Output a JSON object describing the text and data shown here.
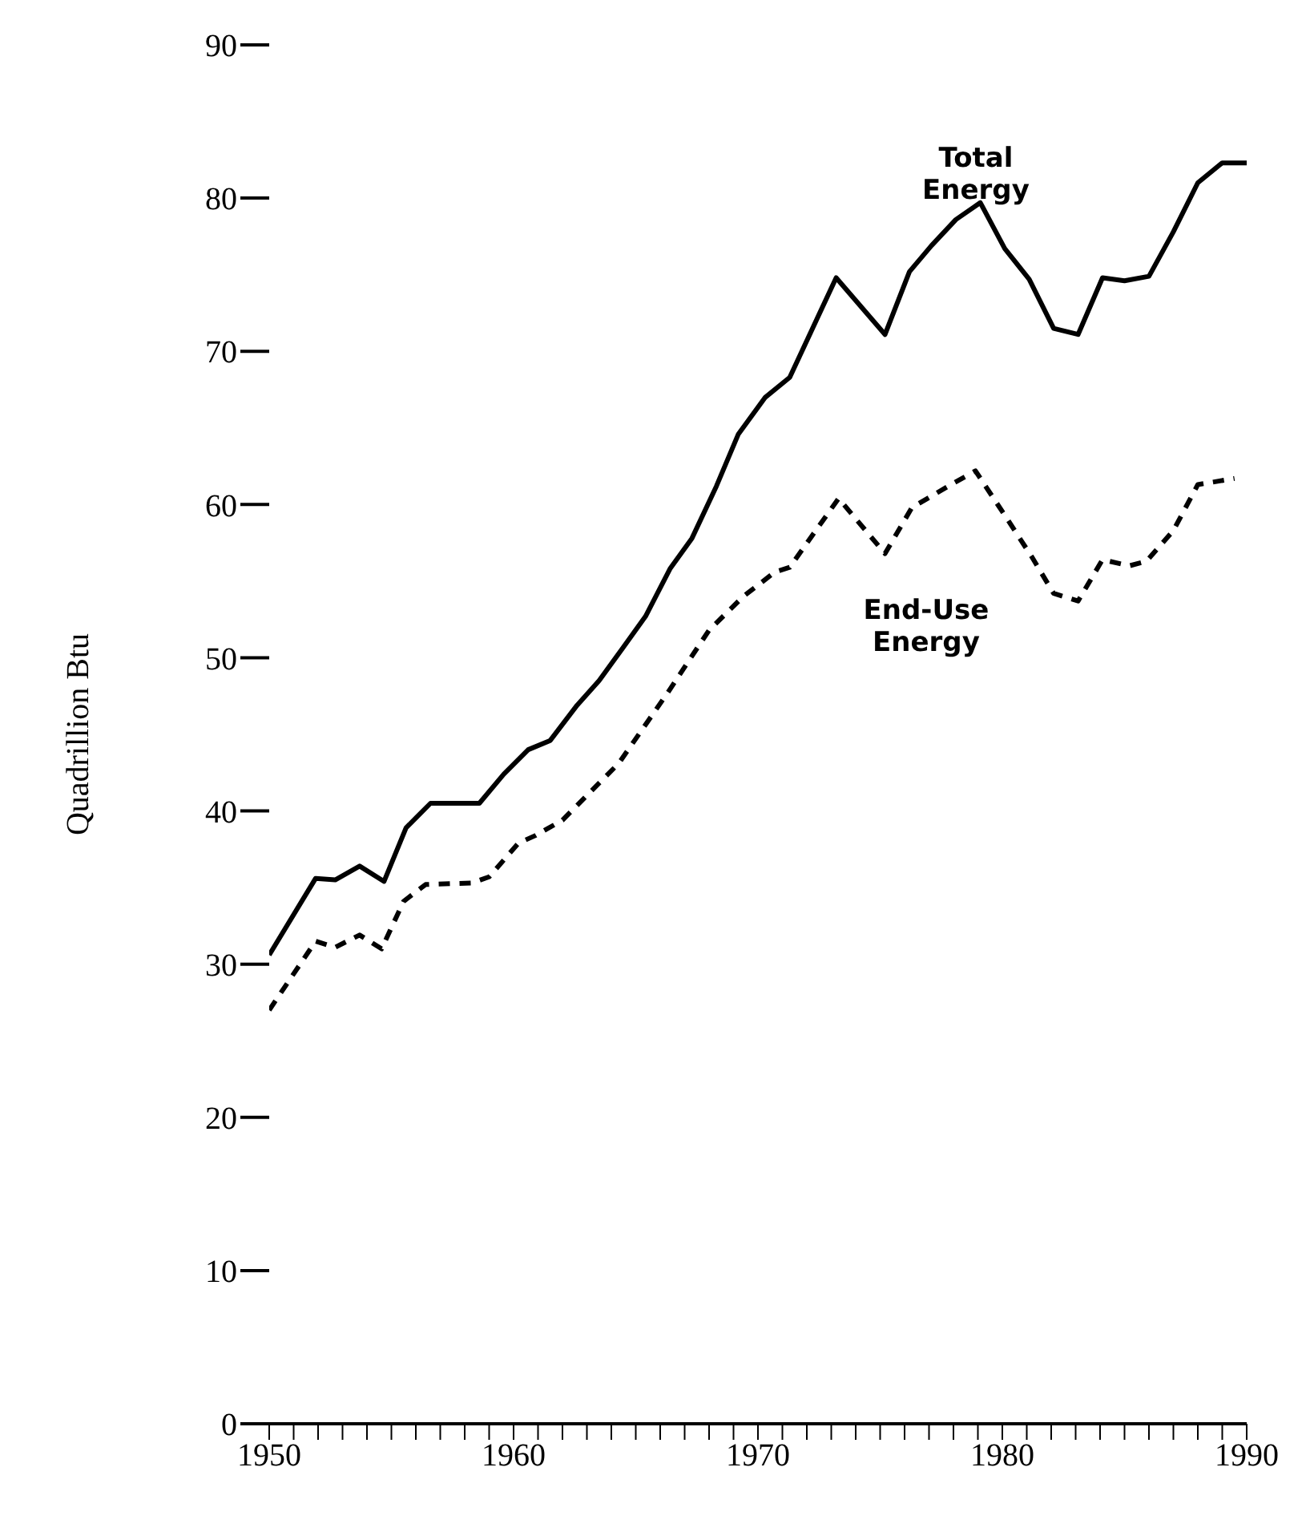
{
  "chart_data": {
    "type": "line",
    "ylabel": "Quadrillion Btu",
    "xlim": [
      1950,
      1990
    ],
    "xticks": [
      1950,
      {
        "value": 1951,
        "label": null
      },
      {
        "value": 1952,
        "label": null
      },
      {
        "value": 1953,
        "label": null
      },
      {
        "value": 1954,
        "label": null
      },
      {
        "value": 1955,
        "label": null
      },
      {
        "value": 1956,
        "label": null
      },
      {
        "value": 1957,
        "label": null
      },
      {
        "value": 1958,
        "label": null
      },
      {
        "value": 1959,
        "label": null
      },
      1960,
      {
        "value": 1961,
        "label": null
      },
      {
        "value": 1962,
        "label": null
      },
      {
        "value": 1963,
        "label": null
      },
      {
        "value": 1964,
        "label": null
      },
      {
        "value": 1965,
        "label": null
      },
      {
        "value": 1966,
        "label": null
      },
      {
        "value": 1967,
        "label": null
      },
      {
        "value": 1968,
        "label": null
      },
      {
        "value": 1969,
        "label": null
      },
      1970,
      {
        "value": 1971,
        "label": null
      },
      {
        "value": 1972,
        "label": null
      },
      {
        "value": 1973,
        "label": null
      },
      {
        "value": 1974,
        "label": null
      },
      {
        "value": 1975,
        "label": null
      },
      {
        "value": 1976,
        "label": null
      },
      {
        "value": 1977,
        "label": null
      },
      {
        "value": 1978,
        "label": null
      },
      {
        "value": 1979,
        "label": null
      },
      1980,
      {
        "value": 1981,
        "label": null
      },
      {
        "value": 1982,
        "label": null
      },
      {
        "value": 1983,
        "label": null
      },
      {
        "value": 1984,
        "label": null
      },
      {
        "value": 1985,
        "label": null
      },
      {
        "value": 1986,
        "label": null
      },
      {
        "value": 1987,
        "label": null
      },
      {
        "value": 1988,
        "label": null
      },
      {
        "value": 1989,
        "label": null
      },
      1990
    ],
    "ylim": [
      0,
      90
    ],
    "yticks": [
      0,
      10,
      20,
      30,
      40,
      50,
      60,
      70,
      80,
      90
    ],
    "grid": false,
    "legend": false,
    "marker": "none",
    "series": [
      {
        "name": "Total Energy",
        "color": "#000000",
        "line_style": "solid",
        "x": [
          1950,
          1951.9,
          1952.7,
          1953.7,
          1954.7,
          1955.6,
          1956.6,
          1958.6,
          1959.6,
          1960.6,
          1961.5,
          1962.6,
          1963.5,
          1964.5,
          1965.4,
          1966.4,
          1967.3,
          1968.3,
          1969.2,
          1970.3,
          1971.3,
          1973.2,
          1975.2,
          1976.2,
          1977.1,
          1978.1,
          1979.1,
          1980.1,
          1981.1,
          1982.1,
          1983.1,
          1984.1,
          1985,
          1986,
          1987,
          1988,
          1989,
          1990
        ],
        "values": [
          30.6,
          35.6,
          35.5,
          36.4,
          35.4,
          38.9,
          40.5,
          40.5,
          42.4,
          44.0,
          44.6,
          46.9,
          48.5,
          50.7,
          52.7,
          55.8,
          57.8,
          61.2,
          64.6,
          67.0,
          68.3,
          74.8,
          71.1,
          75.2,
          76.9,
          78.6,
          79.7,
          76.7,
          74.7,
          71.5,
          71.1,
          74.8,
          74.6,
          74.9,
          77.8,
          81.0,
          82.3,
          82.3
        ]
      },
      {
        "name": "End-Use Energy",
        "color": "#000000",
        "line_style": "dashed",
        "x": [
          1950,
          1951.9,
          1952.7,
          1953.7,
          1954.6,
          1955.5,
          1956.4,
          1958.3,
          1959,
          1960.2,
          1960.9,
          1962,
          1964.3,
          1966.3,
          1968,
          1969.4,
          1970.7,
          1971.3,
          1973.3,
          1975.2,
          1976.3,
          1977.9,
          1978.9,
          1980.1,
          1981.2,
          1982.1,
          1983.1,
          1984.1,
          1985.2,
          1985.9,
          1987,
          1988,
          1989.5
        ],
        "values": [
          27.0,
          31.5,
          31.1,
          31.9,
          31.0,
          34.1,
          35.2,
          35.3,
          35.7,
          37.9,
          38.4,
          39.4,
          43.1,
          47.7,
          51.8,
          54.0,
          55.6,
          55.9,
          60.4,
          56.8,
          59.8,
          61.3,
          62.2,
          59.3,
          56.6,
          54.2,
          53.7,
          56.4,
          56.0,
          56.3,
          58.3,
          61.3,
          61.7
        ]
      }
    ]
  }
}
